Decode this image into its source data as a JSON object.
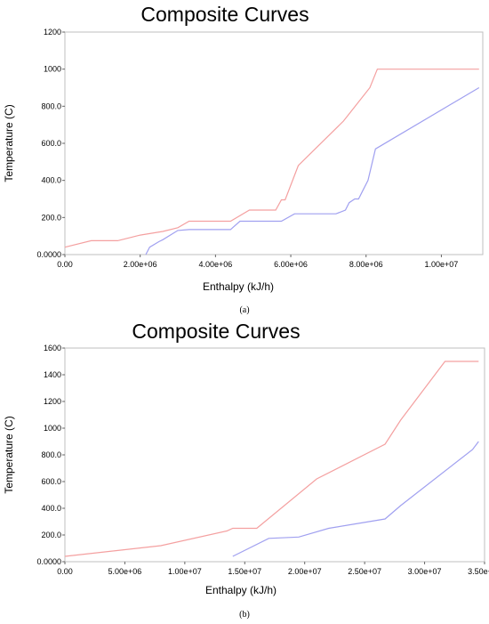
{
  "chart_data": [
    {
      "type": "line",
      "title": "Composite Curves",
      "xlabel": "Enthalpy (kJ/h)",
      "ylabel": "Temperature (C)",
      "caption": "(a)",
      "xlim": [
        0,
        11100000
      ],
      "ylim": [
        0,
        1200
      ],
      "xticks": [
        0,
        2000000,
        4000000,
        6000000,
        8000000,
        10000000
      ],
      "xtick_labels": [
        "0.00",
        "2.00e+06",
        "4.00e+06",
        "6.00e+06",
        "8.00e+06",
        "1.00e+07"
      ],
      "yticks": [
        0,
        200,
        400,
        600,
        800,
        1000,
        1200
      ],
      "ytick_labels": [
        "0.0000",
        "200.0",
        "400.0",
        "600.0",
        "800.0",
        "1000",
        "1200"
      ],
      "grid": false,
      "series": [
        {
          "color": "#f4a0a0",
          "x": [
            0,
            700000,
            1400000,
            2000000,
            2600000,
            3000000,
            3300000,
            4200000,
            4400000,
            4900000,
            5600000,
            5750000,
            5850000,
            6200000,
            7400000,
            8100000,
            8300000,
            8400000,
            11000000
          ],
          "y": [
            40,
            75,
            75,
            105,
            125,
            145,
            180,
            180,
            180,
            240,
            240,
            295,
            295,
            480,
            720,
            900,
            1000,
            1000,
            1000
          ]
        },
        {
          "color": "#a0a0f0",
          "x": [
            2150000,
            2250000,
            2500000,
            2600000,
            3000000,
            3300000,
            4400000,
            4650000,
            5750000,
            6100000,
            7200000,
            7450000,
            7550000,
            7700000,
            7800000,
            7900000,
            8050000,
            8250000,
            11000000
          ],
          "y": [
            0,
            40,
            70,
            80,
            130,
            135,
            135,
            180,
            180,
            220,
            220,
            240,
            280,
            300,
            300,
            340,
            400,
            570,
            900
          ]
        }
      ]
    },
    {
      "type": "line",
      "title": "Composite Curves",
      "xlabel": "Enthalpy (kJ/h)",
      "ylabel": "Temperature (C)",
      "caption": "(b)",
      "xlim": [
        0,
        35000000
      ],
      "ylim": [
        0,
        1600
      ],
      "xticks": [
        0,
        5000000,
        10000000,
        15000000,
        20000000,
        25000000,
        30000000,
        35000000
      ],
      "xtick_labels": [
        "0.00",
        "5.00e+06",
        "1.00e+07",
        "1.50e+07",
        "2.00e+07",
        "2.50e+07",
        "3.00e+07",
        "3.50e+07"
      ],
      "yticks": [
        0,
        200,
        400,
        600,
        800,
        1000,
        1200,
        1400,
        1600
      ],
      "ytick_labels": [
        "0.0000",
        "200.0",
        "400.0",
        "600.0",
        "800.0",
        "1000",
        "1200",
        "1400",
        "1600"
      ],
      "grid": false,
      "series": [
        {
          "color": "#f4a0a0",
          "x": [
            0,
            8000000,
            13500000,
            14000000,
            16000000,
            21000000,
            26700000,
            28000000,
            31700000,
            33000000,
            34500000
          ],
          "y": [
            40,
            120,
            230,
            250,
            250,
            620,
            880,
            1060,
            1500,
            1500,
            1500
          ],
          "note": ""
        },
        {
          "color": "#a0a0f0",
          "x": [
            14000000,
            17000000,
            19500000,
            22000000,
            26700000,
            28000000,
            34000000,
            34500000
          ],
          "y": [
            40,
            175,
            185,
            250,
            320,
            420,
            840,
            900
          ]
        }
      ]
    }
  ]
}
